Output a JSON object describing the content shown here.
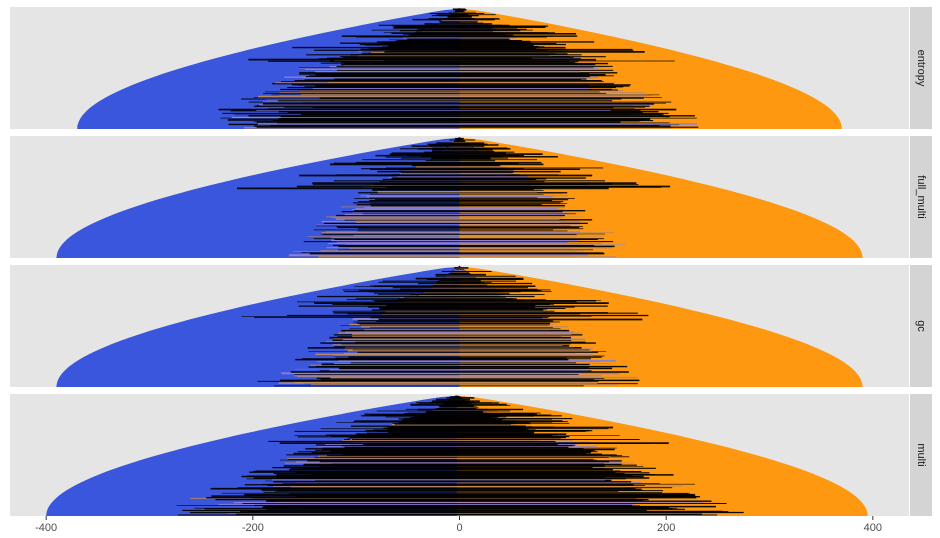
{
  "chart_data": {
    "type": "area",
    "layout": "faceted-rows",
    "x_axis": {
      "ticks": [
        -400,
        -200,
        0,
        200,
        400
      ],
      "tick_labels": [
        "-400",
        "-200",
        "0",
        "200",
        "400"
      ],
      "xlim": [
        -435,
        435
      ]
    },
    "grid": false,
    "legend": "none",
    "colors": {
      "left": "#3a56dd",
      "right": "#fd9810",
      "lines": "#000000",
      "mid_lines_a": "#c28a5a",
      "mid_lines_b": "#8c7fd6",
      "panel_bg": "#e5e5e5",
      "strip_bg": "#d4d4d4"
    },
    "panels": [
      {
        "label": "entropy",
        "curve_range": [
          -370,
          370
        ],
        "line_extent": [
          -260,
          255
        ],
        "line_density": 0.85,
        "blackness": 0.72,
        "line_count": 150,
        "seed": 11
      },
      {
        "label": "full_multi",
        "curve_range": [
          -390,
          390
        ],
        "line_extent": [
          -245,
          240
        ],
        "line_density": 0.55,
        "blackness": 0.45,
        "line_count": 120,
        "seed": 23
      },
      {
        "label": "gc",
        "curve_range": [
          -390,
          390
        ],
        "line_extent": [
          -250,
          245
        ],
        "line_density": 0.6,
        "blackness": 0.55,
        "line_count": 130,
        "seed": 37
      },
      {
        "label": "multi",
        "curve_range": [
          -400,
          395
        ],
        "line_extent": [
          -270,
          265
        ],
        "line_density": 0.9,
        "blackness": 0.82,
        "line_count": 160,
        "seed": 51
      }
    ]
  }
}
